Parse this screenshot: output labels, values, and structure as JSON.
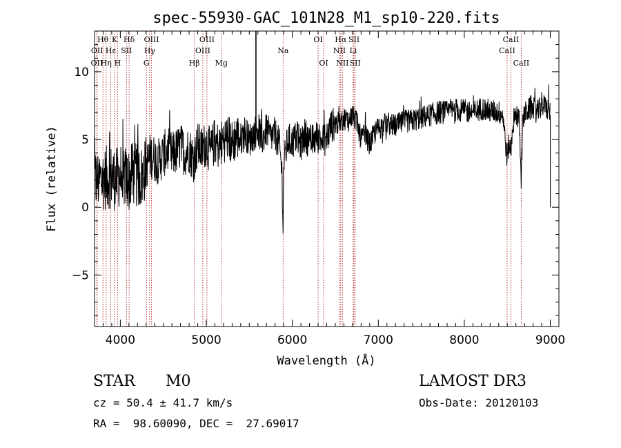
{
  "chart_data": {
    "type": "line",
    "title": "spec-55930-GAC_101N28_M1_sp10-220.fits",
    "xlabel": "Wavelength (Å)",
    "ylabel": "Flux (relative)",
    "xlim": [
      3700,
      9100
    ],
    "ylim": [
      -8.8,
      13.0
    ],
    "xticks": [
      4000,
      5000,
      6000,
      7000,
      8000,
      9000
    ],
    "xtick_labels": [
      "4000",
      "5000",
      "6000",
      "7000",
      "8000",
      "9000"
    ],
    "yticks": [
      -5,
      0,
      5,
      10
    ],
    "ytick_labels": [
      "−5",
      "0",
      "5",
      "10"
    ],
    "series": [
      {
        "name": "flux",
        "color": "#000000",
        "x": [
          3700,
          3750,
          3800,
          3850,
          3900,
          3950,
          4000,
          4050,
          4100,
          4150,
          4200,
          4250,
          4300,
          4350,
          4400,
          4450,
          4500,
          4550,
          4600,
          4650,
          4700,
          4750,
          4800,
          4850,
          4900,
          4950,
          5000,
          5050,
          5100,
          5150,
          5200,
          5250,
          5300,
          5350,
          5400,
          5450,
          5500,
          5550,
          5600,
          5650,
          5700,
          5750,
          5800,
          5850,
          5880,
          5893,
          5900,
          5950,
          6000,
          6050,
          6100,
          6150,
          6200,
          6250,
          6300,
          6350,
          6400,
          6450,
          6500,
          6550,
          6600,
          6650,
          6700,
          6750,
          6800,
          6850,
          6900,
          6950,
          7000,
          7100,
          7200,
          7300,
          7400,
          7500,
          7600,
          7700,
          7800,
          7900,
          8000,
          8100,
          8200,
          8300,
          8400,
          8450,
          8498,
          8520,
          8542,
          8560,
          8600,
          8640,
          8662,
          8680,
          8700,
          8750,
          8800,
          8850,
          8900,
          8950,
          9000
        ],
        "y": [
          2.0,
          2.0,
          2.1,
          2.2,
          2.3,
          2.0,
          2.4,
          2.2,
          2.0,
          2.5,
          2.3,
          2.2,
          3.0,
          3.8,
          3.6,
          3.4,
          3.9,
          4.2,
          3.8,
          4.1,
          4.5,
          4.0,
          4.3,
          3.5,
          4.6,
          4.2,
          4.8,
          4.0,
          5.0,
          4.4,
          5.0,
          5.2,
          4.7,
          5.3,
          5.0,
          5.6,
          4.9,
          5.4,
          5.8,
          5.0,
          5.7,
          5.2,
          5.4,
          4.6,
          2.5,
          -1.5,
          3.2,
          5.0,
          4.8,
          5.2,
          4.6,
          5.4,
          4.7,
          5.0,
          5.2,
          4.9,
          5.1,
          6.0,
          6.2,
          6.1,
          6.6,
          6.4,
          6.8,
          6.2,
          5.0,
          5.4,
          4.6,
          5.4,
          5.8,
          6.2,
          6.0,
          6.3,
          6.4,
          6.6,
          6.8,
          7.0,
          7.0,
          7.2,
          7.1,
          7.0,
          7.3,
          7.1,
          7.0,
          6.8,
          3.5,
          4.8,
          4.0,
          6.0,
          6.8,
          6.5,
          2.2,
          6.3,
          6.9,
          7.2,
          7.3,
          7.0,
          7.5,
          7.4,
          6.9
        ]
      }
    ],
    "spike": {
      "x": 5577,
      "y_top": 13.0,
      "y_bottom": 5.6
    },
    "right_drop": {
      "x": 9000,
      "y_bottom": 0.0
    },
    "lines": [
      {
        "name": "OII",
        "x": 3727,
        "row": 2
      },
      {
        "name": "OII",
        "x": 3730,
        "row": 1
      },
      {
        "name": "Hθ",
        "x": 3798,
        "row": 0
      },
      {
        "name": "Hη",
        "x": 3835,
        "row": 2
      },
      {
        "name": "Hε",
        "x": 3889,
        "row": 1
      },
      {
        "name": "K",
        "x": 3934,
        "row": 0
      },
      {
        "name": "H",
        "x": 3968,
        "row": 2
      },
      {
        "name": "SII",
        "x": 4072,
        "row": 1
      },
      {
        "name": "Hδ",
        "x": 4102,
        "row": 0
      },
      {
        "name": "G",
        "x": 4304,
        "row": 2
      },
      {
        "name": "Hγ",
        "x": 4341,
        "row": 1
      },
      {
        "name": "OIII",
        "x": 4363,
        "row": 0
      },
      {
        "name": "Hβ",
        "x": 4861,
        "row": 2
      },
      {
        "name": "OIII",
        "x": 4959,
        "row": 1
      },
      {
        "name": "OIII",
        "x": 5007,
        "row": 0
      },
      {
        "name": "Mg",
        "x": 5175,
        "row": 2
      },
      {
        "name": "Na",
        "x": 5893,
        "row": 1
      },
      {
        "name": "OI",
        "x": 6300,
        "row": 0
      },
      {
        "name": "OI",
        "x": 6364,
        "row": 2
      },
      {
        "name": "NII",
        "x": 6548,
        "row": 1
      },
      {
        "name": "Hα",
        "x": 6563,
        "row": 0
      },
      {
        "name": "NII",
        "x": 6583,
        "row": 2
      },
      {
        "name": "Li",
        "x": 6708,
        "row": 1
      },
      {
        "name": "SII",
        "x": 6717,
        "row": 0
      },
      {
        "name": "SII",
        "x": 6731,
        "row": 2
      },
      {
        "name": "CaII",
        "x": 8498,
        "row": 1
      },
      {
        "name": "CaII",
        "x": 8542,
        "row": 0
      },
      {
        "name": "CaII",
        "x": 8662,
        "row": 2
      }
    ],
    "line_marker_color": "#b22222"
  },
  "info": {
    "class": "STAR",
    "subclass": "M0",
    "survey": "LAMOST DR3",
    "cz": "cz = 50.4 ± 41.7 km/s",
    "obs_date": "Obs-Date: 20120103",
    "coords": "RA =  98.60090, DEC =  27.69017"
  }
}
